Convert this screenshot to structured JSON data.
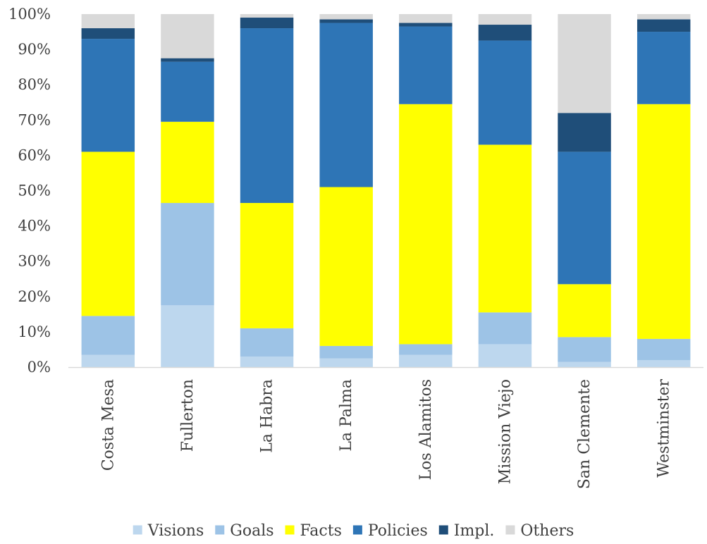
{
  "chart_data": {
    "type": "bar",
    "stacked": true,
    "percent": true,
    "categories": [
      "Costa Mesa",
      "Fullerton",
      "La Habra",
      "La Palma",
      "Los Alamitos",
      "Mission Viejo",
      "San Clemente",
      "Westminster"
    ],
    "series": [
      {
        "name": "Visions",
        "color": "#BDD7EE",
        "values": [
          3.5,
          17.5,
          3,
          2.5,
          3.5,
          6.5,
          1.5,
          2
        ]
      },
      {
        "name": "Goals",
        "color": "#9DC3E6",
        "values": [
          11,
          29,
          8,
          3.5,
          3,
          9,
          7,
          6
        ]
      },
      {
        "name": "Facts",
        "color": "#FFFF00",
        "values": [
          46.5,
          23,
          35.5,
          45,
          68,
          47.5,
          15,
          66.5
        ]
      },
      {
        "name": "Policies",
        "color": "#2E75B6",
        "values": [
          32,
          17,
          49.5,
          46.5,
          22,
          29.5,
          37.5,
          20.5
        ]
      },
      {
        "name": "Impl.",
        "color": "#1F4E79",
        "values": [
          3,
          1,
          3,
          1,
          1,
          4.5,
          11,
          3.5
        ]
      },
      {
        "name": "Others",
        "color": "#D9D9D9",
        "values": [
          4,
          12.5,
          1,
          1.5,
          2.5,
          3,
          28,
          1.5
        ]
      }
    ],
    "y_ticks": [
      "0%",
      "10%",
      "20%",
      "30%",
      "40%",
      "50%",
      "60%",
      "70%",
      "80%",
      "90%",
      "100%"
    ],
    "ylim": [
      0,
      100
    ],
    "title": "",
    "xlabel": "",
    "ylabel": "",
    "grid": false,
    "legend_position": "bottom"
  }
}
